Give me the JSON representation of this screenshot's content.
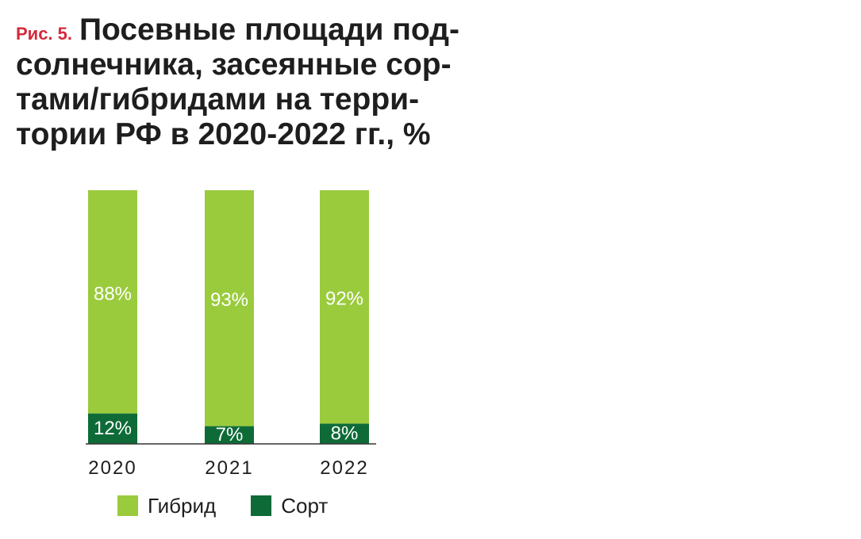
{
  "figure_label": "Рис. 5.",
  "title_lines": [
    "Посевные площади под-",
    "солнечника, засеянные сор-",
    "тами/гибридами на терри-",
    "тории РФ в 2020-2022 гг., %"
  ],
  "colors": {
    "hybrid": "#9acb3c",
    "variety": "#0e6b37",
    "axis": "#333333",
    "label_text": "#ffffff"
  },
  "chart_data": {
    "type": "bar",
    "stacked": true,
    "categories": [
      "2020",
      "2021",
      "2022"
    ],
    "series": [
      {
        "name": "Сорт",
        "values": [
          12,
          7,
          8
        ],
        "labels": [
          "12%",
          "7%",
          "8%"
        ]
      },
      {
        "name": "Гибрид",
        "values": [
          88,
          93,
          92
        ],
        "labels": [
          "88%",
          "93%",
          "92%"
        ]
      }
    ],
    "ylim": [
      0,
      100
    ],
    "grid": false,
    "legend_position": "bottom"
  },
  "legend": [
    {
      "label": "Гибрид",
      "color": "#9acb3c"
    },
    {
      "label": "Сорт",
      "color": "#0e6b37"
    }
  ]
}
